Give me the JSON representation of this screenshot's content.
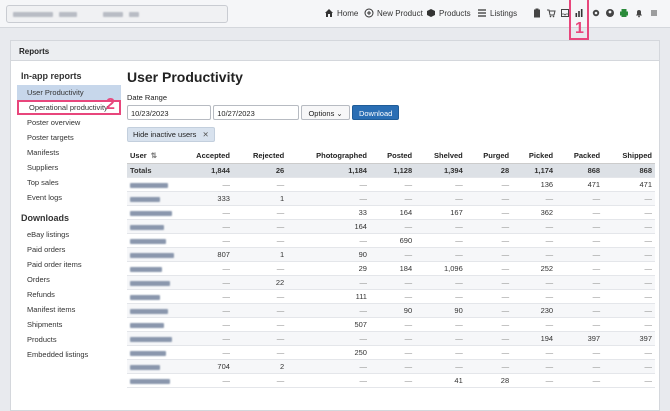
{
  "topbar": {
    "nav": [
      {
        "label": "Home",
        "icon": "home-icon"
      },
      {
        "label": "New Product",
        "icon": "plus-circle-icon"
      },
      {
        "label": "Products",
        "icon": "products-icon"
      },
      {
        "label": "Listings",
        "icon": "listings-icon"
      }
    ],
    "marker_1": "1"
  },
  "panel": {
    "title": "Reports"
  },
  "sidebar": {
    "section1": "In-app reports",
    "inapp": [
      "User Productivity",
      "Operational productivity",
      "Poster overview",
      "Poster targets",
      "Manifests",
      "Suppliers",
      "Top sales",
      "Event logs"
    ],
    "marker_2": "2",
    "section2": "Downloads",
    "downloads": [
      "eBay listings",
      "Paid orders",
      "Paid order items",
      "Orders",
      "Refunds",
      "Manifest items",
      "Shipments",
      "Products",
      "Embedded listings"
    ]
  },
  "main": {
    "title": "User Productivity",
    "date_range_label": "Date Range",
    "date_from": "10/23/2023",
    "date_to": "10/27/2023",
    "options_label": "Options",
    "download_label": "Download",
    "filter_chip": "Hide inactive users",
    "sort_icon": "sort-icon"
  },
  "table": {
    "headers": [
      "User",
      "Accepted",
      "Rejected",
      "Photographed",
      "Posted",
      "Shelved",
      "Purged",
      "Picked",
      "Packed",
      "Shipped"
    ],
    "totals": [
      "Totals",
      "1,844",
      "26",
      "1,184",
      "1,128",
      "1,394",
      "28",
      "1,174",
      "868",
      "868"
    ],
    "rows": [
      [
        "—",
        "—",
        "—",
        "—",
        "—",
        "—",
        "136",
        "471",
        "471"
      ],
      [
        "333",
        "1",
        "—",
        "—",
        "—",
        "—",
        "—",
        "—",
        "—"
      ],
      [
        "—",
        "—",
        "33",
        "164",
        "167",
        "—",
        "362",
        "—",
        "—"
      ],
      [
        "—",
        "—",
        "164",
        "—",
        "—",
        "—",
        "—",
        "—",
        "—"
      ],
      [
        "—",
        "—",
        "—",
        "690",
        "—",
        "—",
        "—",
        "—",
        "—"
      ],
      [
        "807",
        "1",
        "90",
        "—",
        "—",
        "—",
        "—",
        "—",
        "—"
      ],
      [
        "—",
        "—",
        "29",
        "184",
        "1,096",
        "—",
        "252",
        "—",
        "—"
      ],
      [
        "—",
        "22",
        "—",
        "—",
        "—",
        "—",
        "—",
        "—",
        "—"
      ],
      [
        "—",
        "—",
        "111",
        "—",
        "—",
        "—",
        "—",
        "—",
        "—"
      ],
      [
        "—",
        "—",
        "—",
        "90",
        "90",
        "—",
        "230",
        "—",
        "—"
      ],
      [
        "—",
        "—",
        "507",
        "—",
        "—",
        "—",
        "—",
        "—",
        "—"
      ],
      [
        "—",
        "—",
        "—",
        "—",
        "—",
        "—",
        "194",
        "397",
        "397"
      ],
      [
        "—",
        "—",
        "250",
        "—",
        "—",
        "—",
        "—",
        "—",
        "—"
      ],
      [
        "704",
        "2",
        "—",
        "—",
        "—",
        "—",
        "—",
        "—",
        "—"
      ],
      [
        "—",
        "—",
        "—",
        "—",
        "41",
        "28",
        "—",
        "—",
        "—"
      ]
    ]
  }
}
